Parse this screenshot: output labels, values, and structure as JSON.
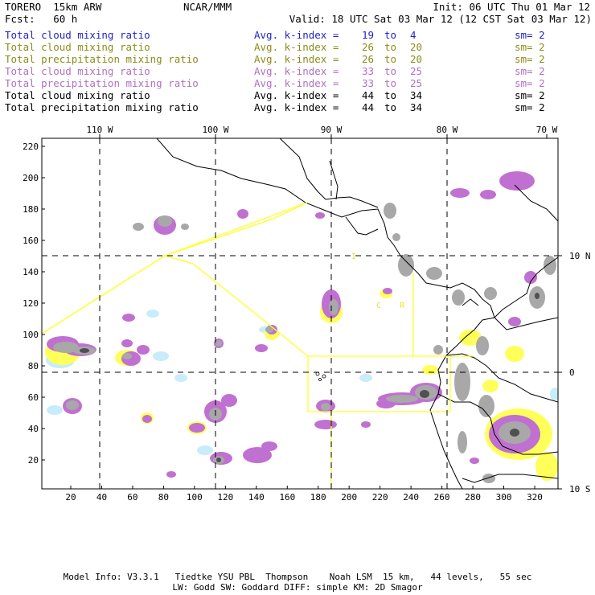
{
  "header": {
    "model": "TORERO",
    "resolution": "15km ARW",
    "org": "NCAR/MMM",
    "init": "Init: 06 UTC Thu 01 Mar 12",
    "fcst_label": "Fcst:",
    "fcst_value": "60 h",
    "valid": "Valid: 18 UTC Sat 03 Mar 12 (12 CST Sat 03 Mar 12)"
  },
  "legend": [
    {
      "field": "Total cloud mixing ratio",
      "index": "Avg. k-index =",
      "from": "19",
      "to_word": "to",
      "to": "4",
      "sm": "sm= 2",
      "color": "#1f1fd0"
    },
    {
      "field": "Total cloud mixing ratio",
      "index": "Avg. k-index =",
      "from": "26",
      "to_word": "to",
      "to": "20",
      "sm": "sm= 2",
      "color": "#8c8c1a"
    },
    {
      "field": "Total precipitation mixing ratio",
      "index": "Avg. k-index =",
      "from": "26",
      "to_word": "to",
      "to": "20",
      "sm": "sm= 2",
      "color": "#8c8c1a"
    },
    {
      "field": "Total cloud mixing ratio",
      "index": "Avg. k-index =",
      "from": "33",
      "to_word": "to",
      "to": "25",
      "sm": "sm= 2",
      "color": "#b070c0"
    },
    {
      "field": "Total precipitation mixing ratio",
      "index": "Avg. k-index =",
      "from": "33",
      "to_word": "to",
      "to": "25",
      "sm": "sm= 2",
      "color": "#b070c0"
    },
    {
      "field": "Total cloud mixing ratio",
      "index": "Avg. k-index =",
      "from": "44",
      "to_word": "to",
      "to": "34",
      "sm": "sm= 2",
      "color": "#000000"
    },
    {
      "field": "Total precipitation mixing ratio",
      "index": "Avg. k-index =",
      "from": "44",
      "to_word": "to",
      "to": "34",
      "sm": "sm= 2",
      "color": "#000000"
    }
  ],
  "map": {
    "lon_labels": [
      "110 W",
      "100 W",
      "90 W",
      "80 W",
      "70 W"
    ],
    "lat_labels": [
      "10 N",
      "0",
      "10 S"
    ],
    "grid_y_ticks": [
      "220",
      "200",
      "180",
      "160",
      "140",
      "120",
      "100",
      "80",
      "60",
      "40",
      "20"
    ],
    "grid_x_ticks": [
      "20",
      "40",
      "60",
      "80",
      "100",
      "120",
      "140",
      "160",
      "180",
      "200",
      "220",
      "240",
      "260",
      "280",
      "300",
      "320"
    ],
    "region_letters": [
      "I",
      "C",
      "R"
    ],
    "colors": {
      "light_blue": "#c8ecfa",
      "yellow": "#ffff5a",
      "purple": "#c070d0",
      "gray": "#a8a8a8",
      "dark": "#505050",
      "boundary": "#ffff28"
    }
  },
  "footer": {
    "line1": "Model Info: V3.3.1   Tiedtke YSU PBL  Thompson    Noah LSM  15 km,   44 levels,   55 sec",
    "line2": "LW: Godd SW: Goddard DIFF: simple KM: 2D Smagor"
  }
}
